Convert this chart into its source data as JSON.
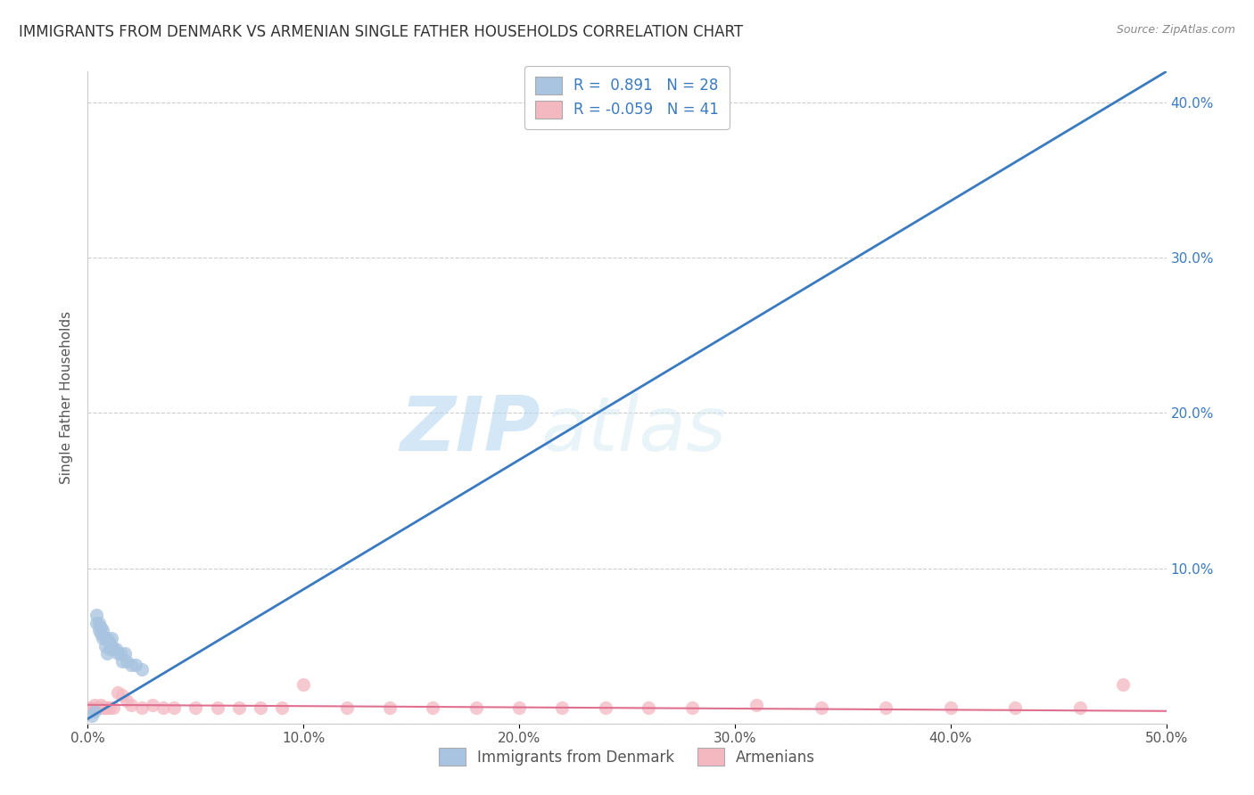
{
  "title": "IMMIGRANTS FROM DENMARK VS ARMENIAN SINGLE FATHER HOUSEHOLDS CORRELATION CHART",
  "source": "Source: ZipAtlas.com",
  "ylabel": "Single Father Households",
  "xlim": [
    0.0,
    0.5
  ],
  "ylim": [
    0.0,
    0.42
  ],
  "xticks": [
    0.0,
    0.1,
    0.2,
    0.3,
    0.4,
    0.5
  ],
  "xticklabels": [
    "0.0%",
    "10.0%",
    "20.0%",
    "30.0%",
    "40.0%",
    "50.0%"
  ],
  "yticks": [
    0.0,
    0.1,
    0.2,
    0.3,
    0.4
  ],
  "yticklabels": [
    "",
    "10.0%",
    "20.0%",
    "30.0%",
    "40.0%"
  ],
  "legend_labels": [
    "Immigrants from Denmark",
    "Armenians"
  ],
  "blue_color": "#a8c4e0",
  "pink_color": "#f4b8c1",
  "blue_line_color": "#3a7abf",
  "pink_line_color": "#e07090",
  "watermark_zip": "ZIP",
  "watermark_atlas": "atlas",
  "R_blue": 0.891,
  "N_blue": 28,
  "R_pink": -0.059,
  "N_pink": 41,
  "blue_scatter_x": [
    0.002,
    0.003,
    0.004,
    0.004,
    0.005,
    0.005,
    0.006,
    0.006,
    0.007,
    0.007,
    0.008,
    0.008,
    0.009,
    0.009,
    0.01,
    0.01,
    0.011,
    0.011,
    0.012,
    0.013,
    0.014,
    0.015,
    0.016,
    0.017,
    0.018,
    0.02,
    0.022,
    0.025
  ],
  "blue_scatter_y": [
    0.005,
    0.008,
    0.065,
    0.07,
    0.06,
    0.065,
    0.058,
    0.062,
    0.055,
    0.06,
    0.05,
    0.055,
    0.045,
    0.055,
    0.048,
    0.052,
    0.05,
    0.055,
    0.048,
    0.048,
    0.045,
    0.045,
    0.04,
    0.045,
    0.04,
    0.038,
    0.038,
    0.035
  ],
  "pink_scatter_x": [
    0.001,
    0.002,
    0.003,
    0.004,
    0.005,
    0.006,
    0.007,
    0.008,
    0.009,
    0.01,
    0.012,
    0.014,
    0.016,
    0.018,
    0.02,
    0.025,
    0.03,
    0.035,
    0.04,
    0.05,
    0.06,
    0.07,
    0.08,
    0.09,
    0.1,
    0.12,
    0.14,
    0.16,
    0.18,
    0.2,
    0.22,
    0.24,
    0.26,
    0.28,
    0.31,
    0.34,
    0.37,
    0.4,
    0.43,
    0.46,
    0.48
  ],
  "pink_scatter_y": [
    0.01,
    0.01,
    0.012,
    0.01,
    0.01,
    0.012,
    0.01,
    0.01,
    0.01,
    0.01,
    0.01,
    0.02,
    0.018,
    0.015,
    0.012,
    0.01,
    0.012,
    0.01,
    0.01,
    0.01,
    0.01,
    0.01,
    0.01,
    0.01,
    0.025,
    0.01,
    0.01,
    0.01,
    0.01,
    0.01,
    0.01,
    0.01,
    0.01,
    0.01,
    0.012,
    0.01,
    0.01,
    0.01,
    0.01,
    0.01,
    0.025
  ],
  "blue_line_x": [
    0.0,
    0.5
  ],
  "blue_line_y": [
    0.003,
    0.42
  ],
  "pink_line_x": [
    0.0,
    0.5
  ],
  "pink_line_y": [
    0.012,
    0.008
  ],
  "grid_color": "#c8c8c8",
  "background_color": "#ffffff",
  "title_fontsize": 12,
  "axis_label_fontsize": 11,
  "tick_fontsize": 11
}
